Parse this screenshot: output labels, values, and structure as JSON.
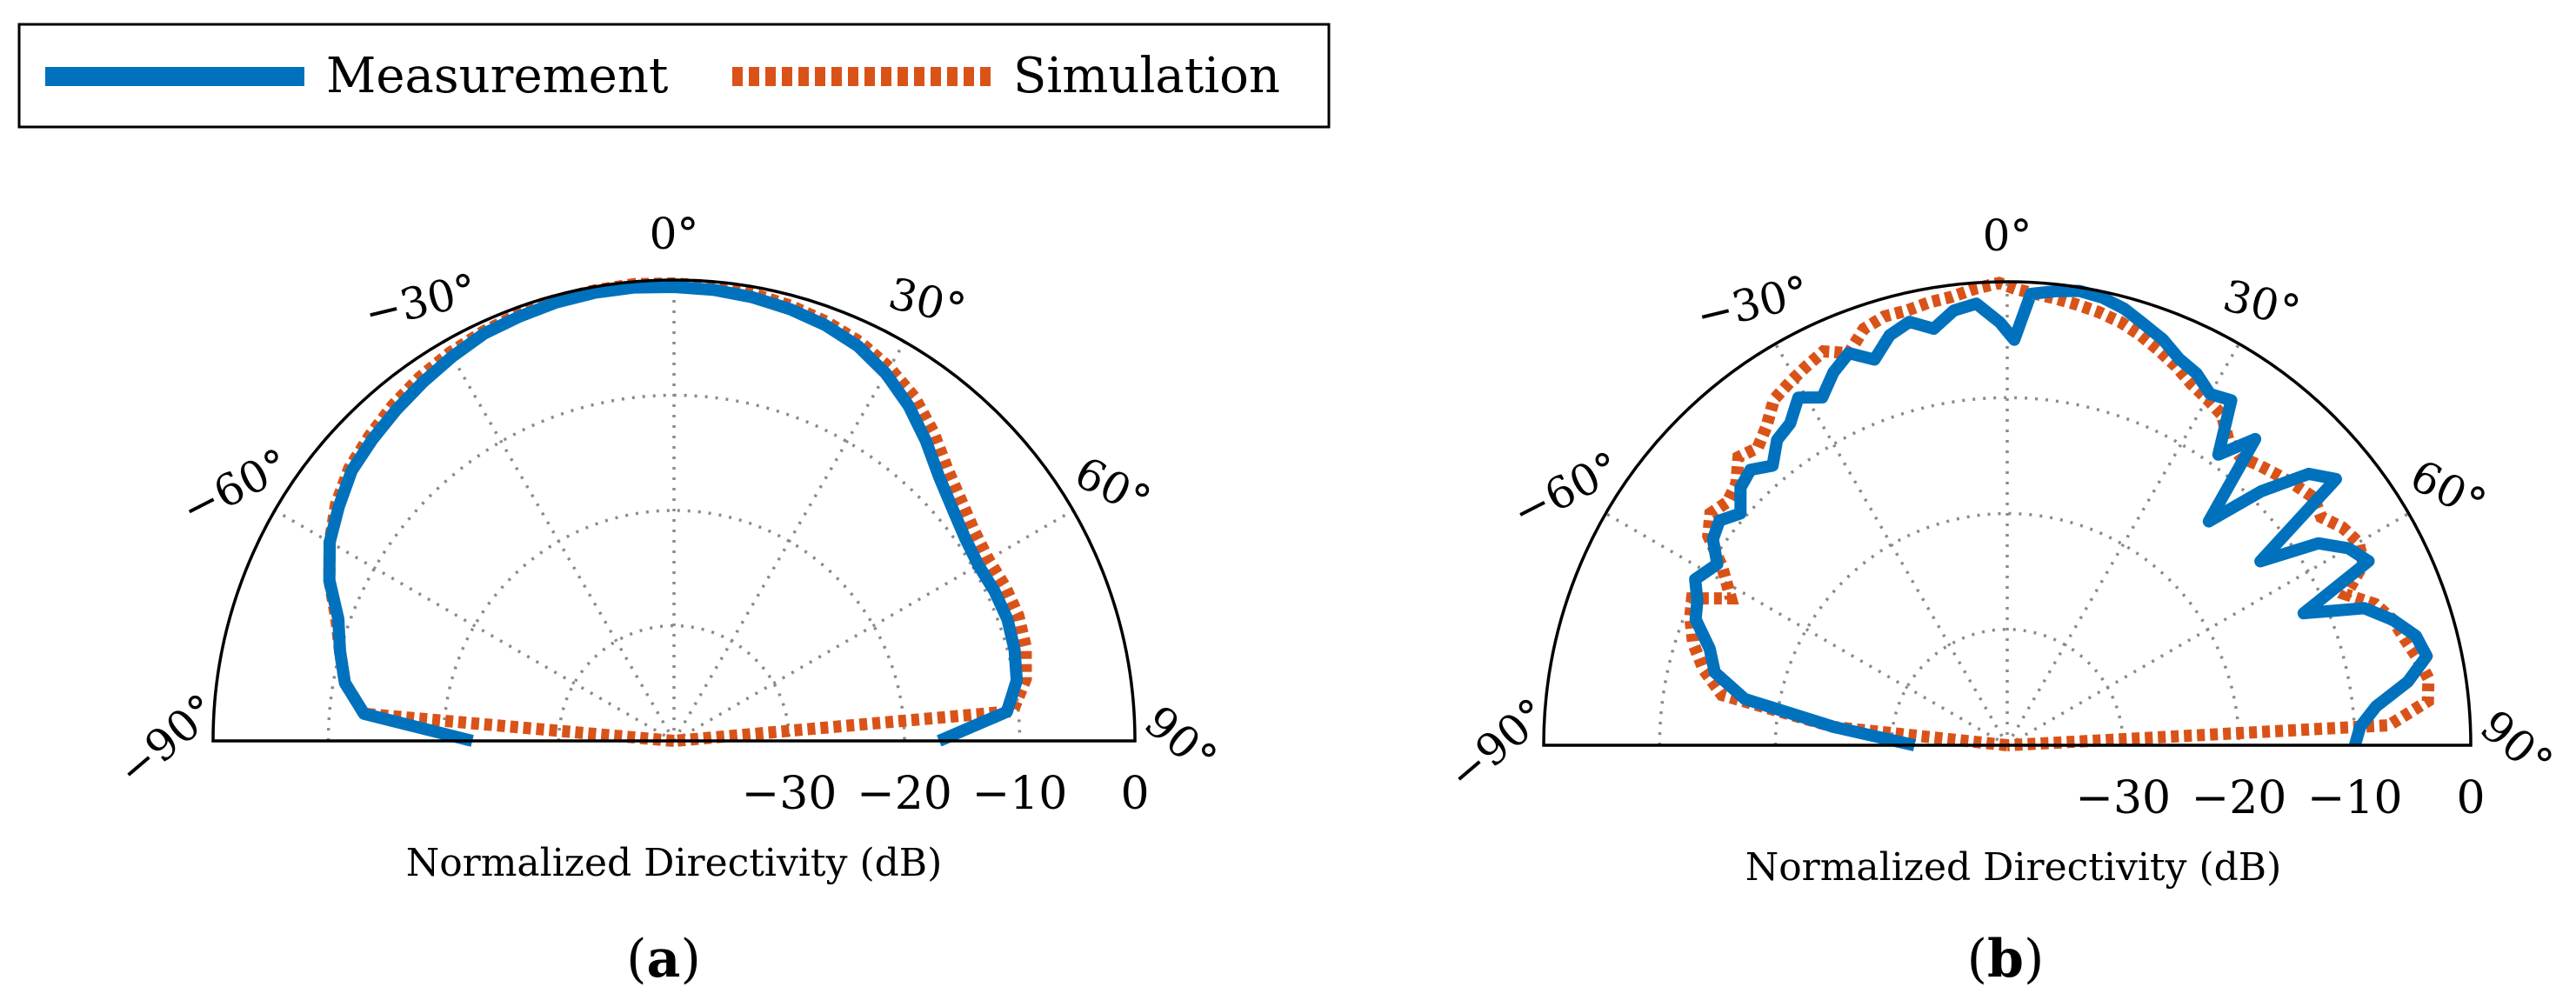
{
  "legend": {
    "items": [
      {
        "name": "Measurement",
        "color": "#0072BD",
        "style": "solid"
      },
      {
        "name": "Simulation",
        "color": "#D95319",
        "style": "dotted"
      }
    ]
  },
  "colors": {
    "measurement": "#0072BD",
    "simulation": "#D95319",
    "grid": "#8a8a8a"
  },
  "chart_data": [
    {
      "type": "polar-line",
      "panel_label": "a",
      "angle_range_deg": [
        -90,
        90
      ],
      "angle_ticks": [
        "−90°",
        "−60°",
        "−30°",
        "0°",
        "30°",
        "60°",
        "90°"
      ],
      "r_range_db": [
        -40,
        0
      ],
      "r_ticks": [
        "−30",
        "−20",
        "−10",
        "0"
      ],
      "xlabel": "Normalized Directivity (dB)",
      "series": [
        {
          "name": "Measurement",
          "theta_deg": [
            -90,
            -85,
            -80,
            -75,
            -70,
            -65,
            -60,
            -55,
            -50,
            -45,
            -40,
            -35,
            -30,
            -25,
            -20,
            -15,
            -10,
            -5,
            0,
            5,
            10,
            15,
            20,
            25,
            30,
            35,
            40,
            45,
            50,
            55,
            60,
            65,
            70,
            75,
            80,
            85,
            90
          ],
          "r_db": [
            -22.5,
            -13.0,
            -11.0,
            -10.0,
            -9.0,
            -7.0,
            -5.5,
            -4.5,
            -3.5,
            -3.0,
            -2.5,
            -2.0,
            -1.5,
            -1.0,
            -0.8,
            -0.6,
            -0.5,
            -0.5,
            -0.6,
            -0.7,
            -0.9,
            -1.2,
            -1.6,
            -2.2,
            -3.2,
            -4.5,
            -6.0,
            -7.5,
            -8.5,
            -9.2,
            -9.5,
            -9.3,
            -9.2,
            -9.4,
            -9.8,
            -11.0,
            -17.0
          ]
        },
        {
          "name": "Simulation",
          "theta_deg": [
            -90,
            -85,
            -80,
            -75,
            -70,
            -65,
            -60,
            -55,
            -50,
            -45,
            -40,
            -35,
            -30,
            -25,
            -20,
            -15,
            -10,
            -5,
            0,
            5,
            10,
            15,
            20,
            25,
            30,
            35,
            40,
            45,
            50,
            55,
            60,
            65,
            70,
            75,
            80,
            85,
            90
          ],
          "r_db": [
            -40.0,
            -13.0,
            -11.0,
            -10.0,
            -8.8,
            -7.0,
            -5.5,
            -4.2,
            -3.2,
            -2.6,
            -2.0,
            -1.5,
            -1.1,
            -0.8,
            -0.6,
            -0.4,
            -0.3,
            -0.2,
            -0.3,
            -0.4,
            -0.6,
            -0.9,
            -1.3,
            -1.8,
            -2.6,
            -3.6,
            -5.0,
            -6.5,
            -7.5,
            -8.2,
            -8.5,
            -8.3,
            -8.2,
            -8.4,
            -9.0,
            -10.5,
            -40.0
          ]
        }
      ]
    },
    {
      "type": "polar-line",
      "panel_label": "b",
      "angle_range_deg": [
        -90,
        90
      ],
      "angle_ticks": [
        "−90°",
        "−60°",
        "−30°",
        "0°",
        "30°",
        "60°",
        "90°"
      ],
      "r_range_db": [
        -40,
        0
      ],
      "r_ticks": [
        "−30",
        "−20",
        "−10",
        "0"
      ],
      "xlabel": "Normalized Directivity (dB)",
      "series": [
        {
          "name": "Measurement",
          "theta_deg": [
            -90,
            -84,
            -80,
            -76,
            -72,
            -68,
            -65,
            -62,
            -58,
            -55,
            -52,
            -49,
            -46,
            -43,
            -40,
            -37,
            -34,
            -31,
            -28,
            -25,
            -22,
            -19,
            -16,
            -13,
            -10,
            -7,
            -4,
            -1,
            1,
            3,
            6,
            9,
            12,
            15,
            18,
            21,
            24,
            27,
            30,
            33,
            36,
            39,
            42,
            45,
            48,
            51,
            54,
            57,
            60,
            63,
            66,
            69,
            72,
            75,
            78,
            81,
            84,
            87,
            90
          ],
          "r_db": [
            -32.0,
            -25.0,
            -17.0,
            -14.0,
            -13.0,
            -11.0,
            -10.5,
            -9.5,
            -10.5,
            -9.0,
            -8.5,
            -9.5,
            -8.0,
            -7.5,
            -8.5,
            -7.0,
            -6.5,
            -5.0,
            -6.0,
            -4.5,
            -3.5,
            -4.8,
            -3.2,
            -2.5,
            -3.5,
            -2.2,
            -1.8,
            -3.5,
            -5.0,
            -1.0,
            -0.6,
            -0.3,
            -0.5,
            -1.0,
            -1.8,
            -2.5,
            -3.5,
            -4.0,
            -5.0,
            -4.5,
            -9.0,
            -6.0,
            -14.0,
            -9.0,
            -5.0,
            -3.5,
            -13.0,
            -8.0,
            -6.0,
            -5.0,
            -12.0,
            -7.0,
            -5.0,
            -3.5,
            -3.0,
            -5.0,
            -8.0,
            -9.5,
            -10.0
          ]
        },
        {
          "name": "Simulation",
          "theta_deg": [
            -90,
            -84,
            -80,
            -76,
            -72,
            -68,
            -65,
            -62,
            -58,
            -55,
            -52,
            -49,
            -46,
            -43,
            -40,
            -37,
            -34,
            -31,
            -28,
            -25,
            -22,
            -19,
            -16,
            -13,
            -10,
            -7,
            -4,
            -1,
            1,
            3,
            6,
            9,
            12,
            15,
            18,
            21,
            24,
            27,
            30,
            33,
            36,
            39,
            42,
            45,
            48,
            51,
            54,
            57,
            60,
            63,
            66,
            69,
            72,
            75,
            78,
            81,
            84,
            87,
            90
          ],
          "r_db": [
            -40.0,
            -25.0,
            -15.0,
            -13.0,
            -11.5,
            -10.5,
            -10.0,
            -13.0,
            -11.0,
            -8.5,
            -7.5,
            -8.0,
            -7.5,
            -6.0,
            -6.5,
            -5.5,
            -4.0,
            -3.5,
            -3.0,
            -2.5,
            -3.5,
            -2.0,
            -1.5,
            -1.5,
            -1.2,
            -1.0,
            -0.5,
            -0.1,
            -0.6,
            -0.9,
            -1.2,
            -1.5,
            -1.8,
            -2.2,
            -2.8,
            -3.5,
            -4.2,
            -5.0,
            -5.5,
            -6.0,
            -7.5,
            -8.0,
            -7.5,
            -7.0,
            -6.5,
            -6.0,
            -6.5,
            -5.5,
            -5.0,
            -5.5,
            -8.0,
            -6.0,
            -5.0,
            -4.5,
            -3.8,
            -3.2,
            -3.5,
            -7.0,
            -40.0
          ]
        }
      ]
    }
  ]
}
